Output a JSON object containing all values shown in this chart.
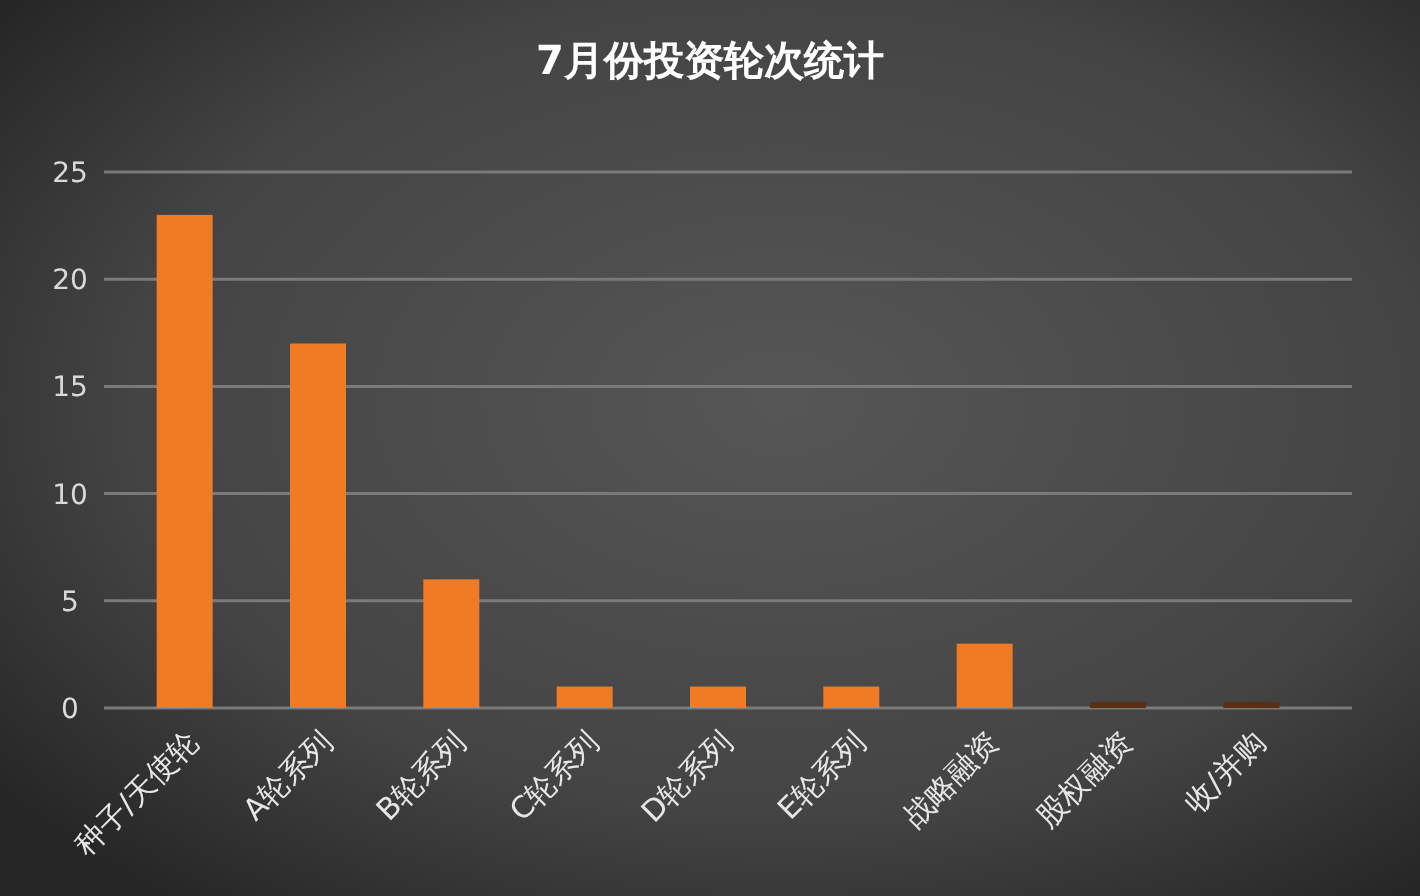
{
  "chart_data": {
    "type": "bar",
    "title": "7月份投资轮次统计",
    "categories": [
      "种子/天使轮",
      "A轮系列",
      "B轮系列",
      "C轮系列",
      "D轮系列",
      "E轮系列",
      "战略融资",
      "股权融资",
      "收/并购"
    ],
    "values": [
      23,
      17,
      6,
      1,
      1,
      1,
      3,
      0,
      0
    ],
    "colors": [
      "#f07b24",
      "#f07b24",
      "#f07b24",
      "#f07b24",
      "#f07b24",
      "#f07b24",
      "#f07b24",
      "#5c2f10",
      "#5c2f10"
    ],
    "ylim": [
      0,
      25
    ],
    "yticks": [
      0,
      5,
      10,
      15,
      20,
      25
    ],
    "grid": "y"
  }
}
